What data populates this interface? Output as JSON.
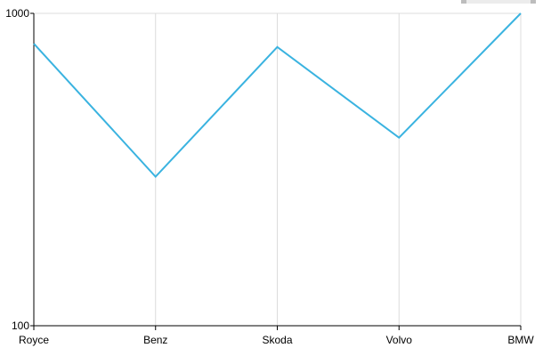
{
  "chart_data": {
    "type": "line",
    "categories": [
      "Royce",
      "Benz",
      "Skoda",
      "Volvo",
      "BMW"
    ],
    "series": [
      {
        "values": [
          800,
          300,
          780,
          400,
          1000
        ]
      }
    ],
    "y_scale": "log",
    "ylim": [
      100,
      1000
    ],
    "y_ticks": [
      "100",
      "1000"
    ],
    "title": "",
    "xlabel": "",
    "ylabel": "",
    "grid": {
      "vertical": true,
      "horizontal": false
    },
    "colors": {
      "series": "#3ab3e0",
      "grid": "#dcdcdc",
      "axis": "#000000"
    }
  }
}
